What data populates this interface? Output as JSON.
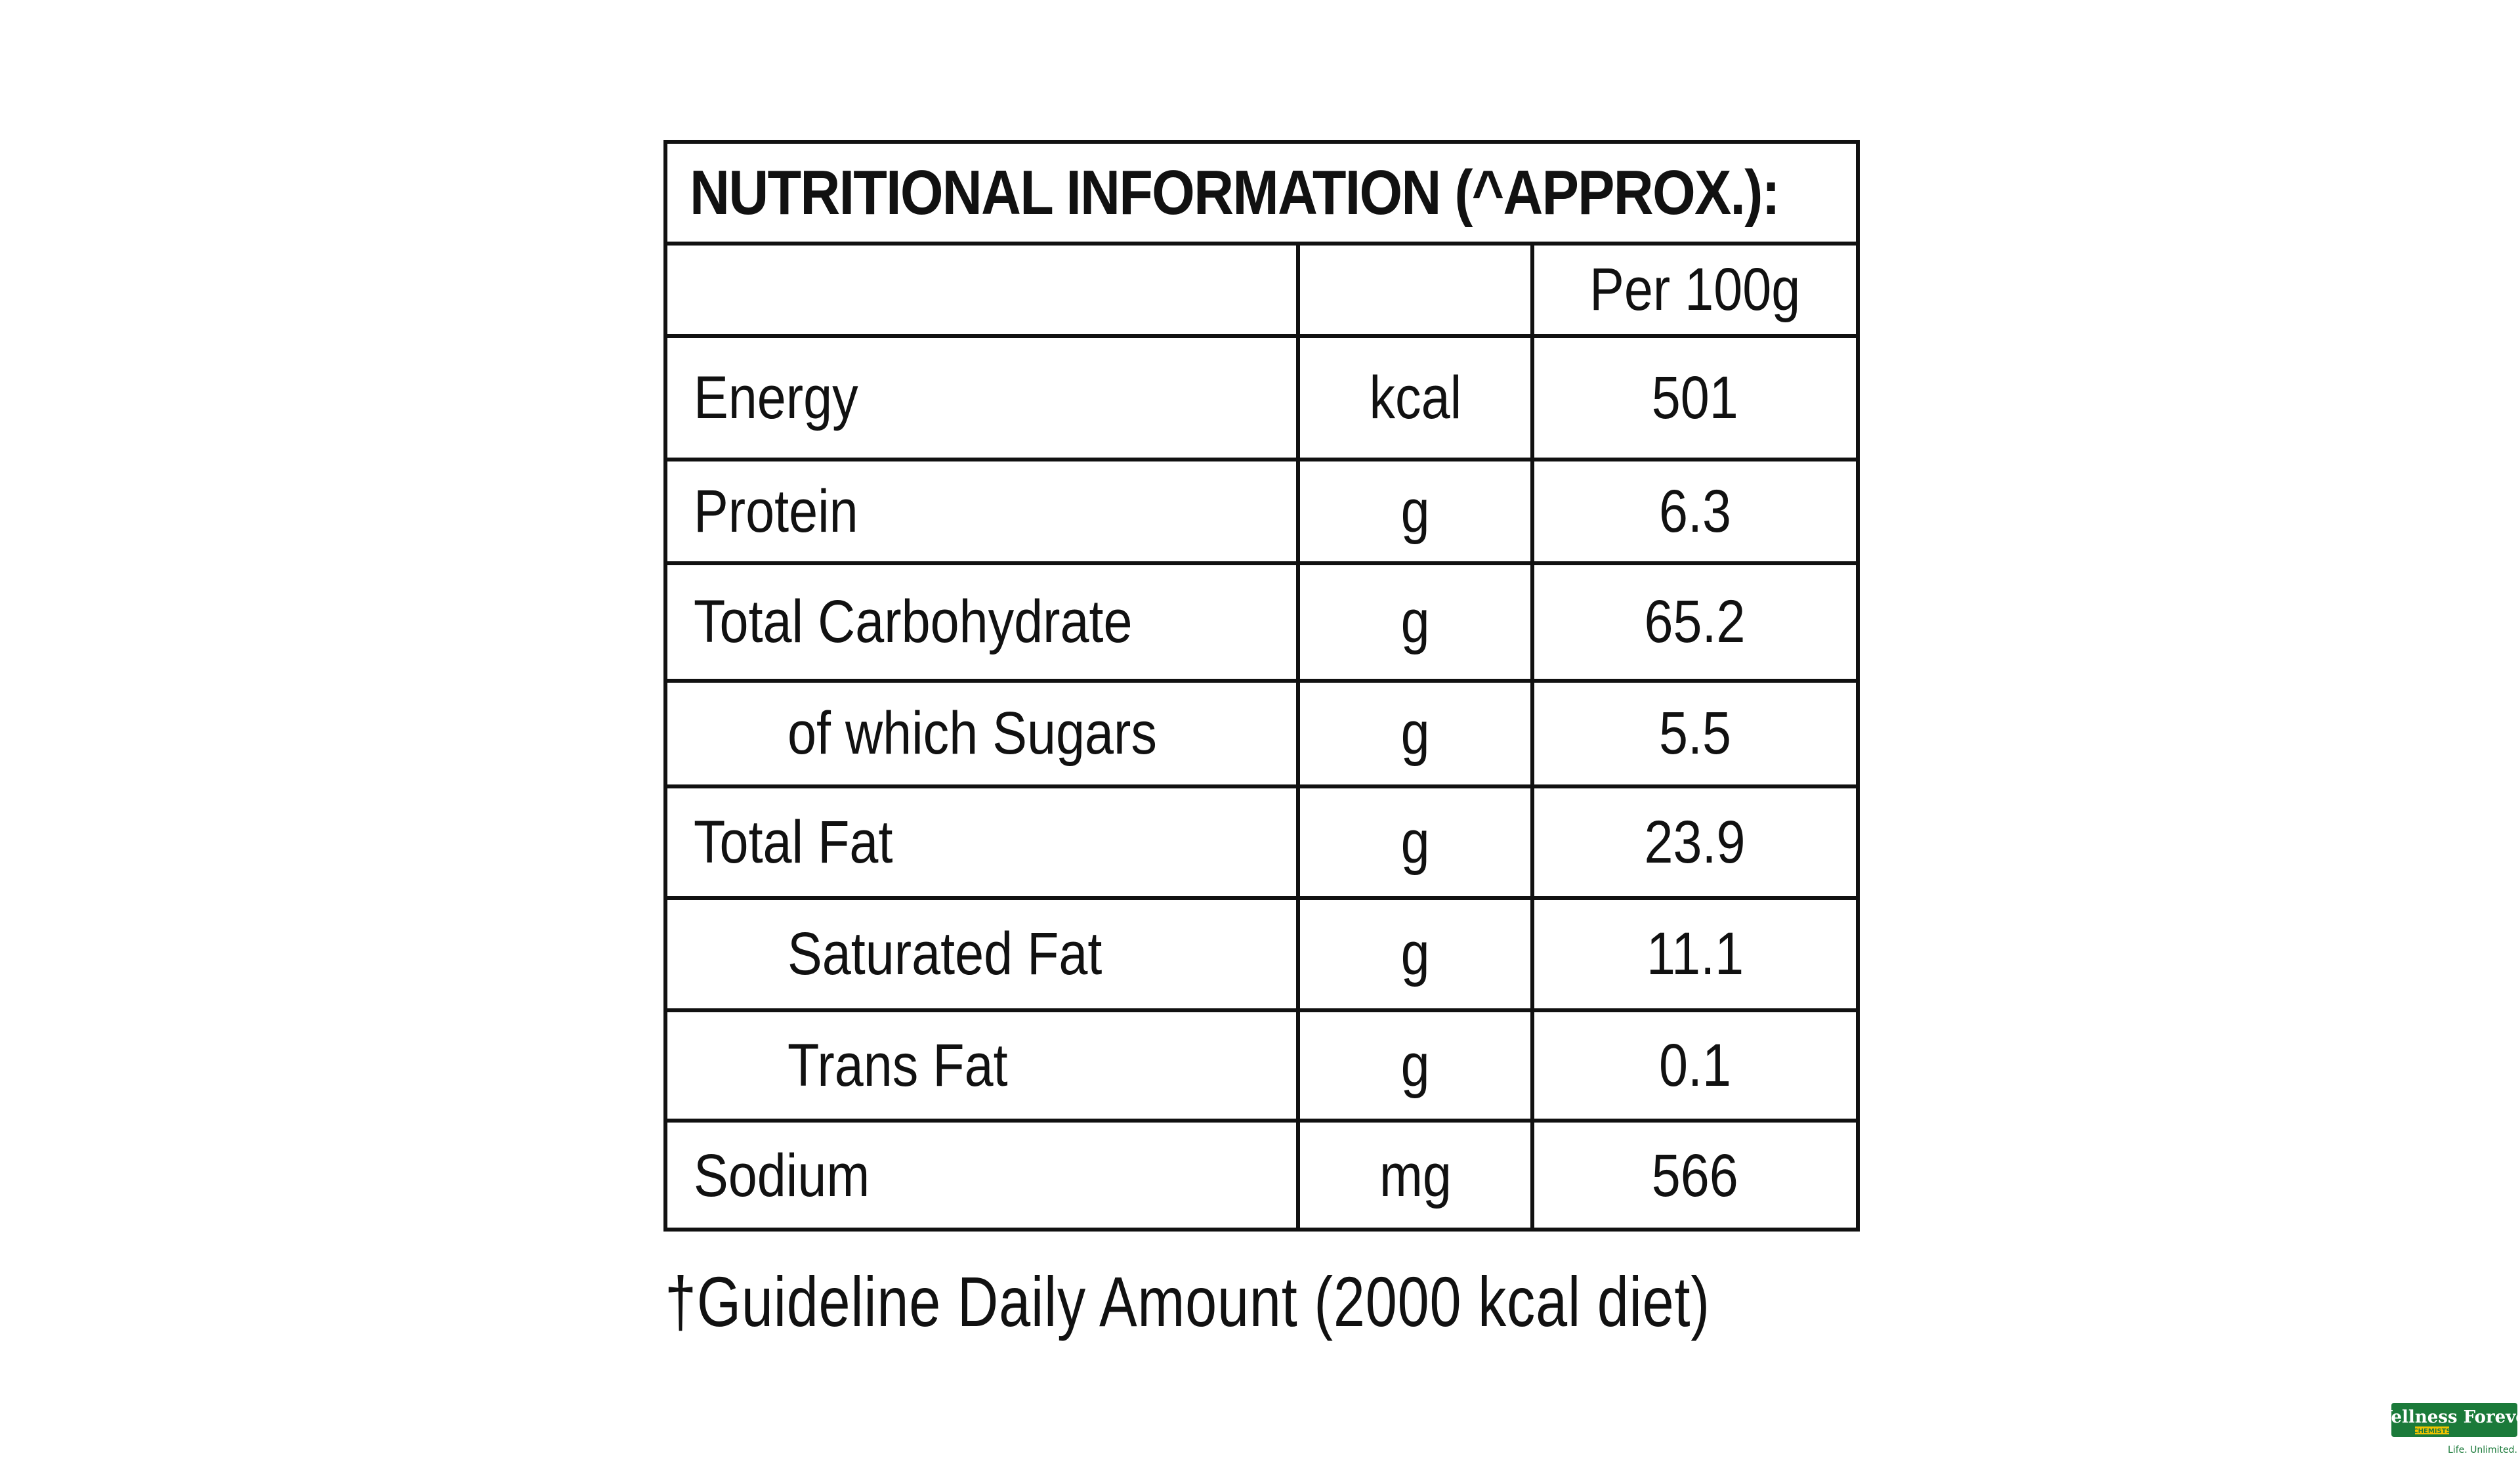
{
  "panel": {
    "title": "NUTRITIONAL INFORMATION (^APPROX.):",
    "column_header": "Per 100g",
    "rows": [
      {
        "name": "Energy",
        "unit": "kcal",
        "value": "501"
      },
      {
        "name": "Protein",
        "unit": "g",
        "value": "6.3"
      },
      {
        "name": "Total Carbohydrate",
        "unit": "g",
        "value": "65.2"
      },
      {
        "name": "of which Sugars",
        "unit": "g",
        "value": "5.5"
      },
      {
        "name": "Total Fat",
        "unit": "g",
        "value": "23.9"
      },
      {
        "name": "Saturated Fat",
        "unit": "g",
        "value": "11.1"
      },
      {
        "name": "Trans Fat",
        "unit": "g",
        "value": "0.1"
      },
      {
        "name": "Sodium",
        "unit": "mg",
        "value": "566"
      }
    ]
  },
  "footnote": "†Guideline Daily Amount (2000 kcal diet)",
  "brand": {
    "name": "Wellness Forever",
    "sub": "CHEMISTS",
    "tagline": "Life. Unlimited.",
    "color": "#1b7a3a"
  }
}
